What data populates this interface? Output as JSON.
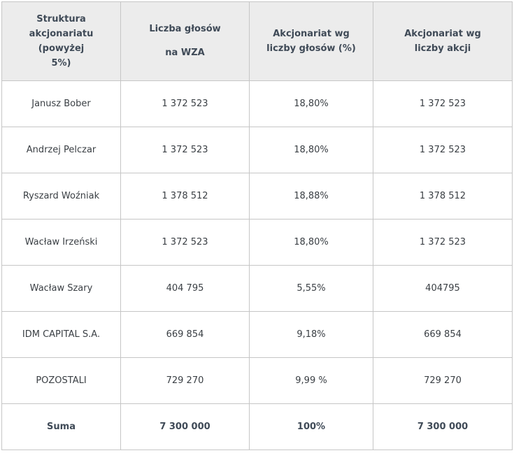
{
  "table": {
    "headers": [
      [
        "Struktura",
        "akcjonariatu (powyżej",
        "5%)"
      ],
      [
        "Liczba głosów",
        "na WZA"
      ],
      [
        "Akcjonariat wg",
        "liczby głosów (%)"
      ],
      [
        "Akcjonariat wg",
        "liczby akcji"
      ]
    ],
    "rows": [
      [
        "Janusz Bober",
        "1 372 523",
        "18,80%",
        "1 372 523"
      ],
      [
        "Andrzej Pelczar",
        "1 372 523",
        "18,80%",
        "1 372 523"
      ],
      [
        "Ryszard Woźniak",
        "1 378 512",
        "18,88%",
        "1 378 512"
      ],
      [
        "Wacław Irzeński",
        "1 372 523",
        "18,80%",
        "1 372 523"
      ],
      [
        "Wacław Szary",
        "404 795",
        "5,55%",
        "404795"
      ],
      [
        "IDM CAPITAL S.A.",
        "669 854",
        "9,18%",
        "669 854"
      ],
      [
        "POZOSTALI",
        "729 270",
        "9,99 %",
        "729 270"
      ]
    ],
    "sum_row": [
      "Suma",
      "7 300 000",
      "100%",
      "7 300 000"
    ]
  },
  "colors": {
    "header_background": "#ececec",
    "border": "#c6c6c6",
    "header_text": "#3f4a57",
    "body_text": "#3a3f44"
  }
}
